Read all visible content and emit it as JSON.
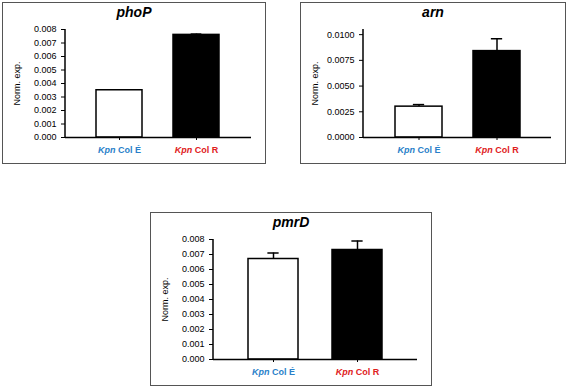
{
  "chart_data": [
    {
      "type": "bar",
      "title": "phoP",
      "y_label": "Norm. exp.",
      "categories": [
        "Kpn Col É",
        "Kpn Col R"
      ],
      "values": [
        0.0035,
        0.0076
      ],
      "errors": [
        null,
        6e-05
      ],
      "colors": [
        "#ffffff",
        "#000000"
      ],
      "ylim": [
        0,
        0.008
      ],
      "yticks": [
        {
          "value": 0,
          "label": "0.000"
        },
        {
          "value": 0.001,
          "label": "0.001"
        },
        {
          "value": 0.002,
          "label": "0.002"
        },
        {
          "value": 0.003,
          "label": "0.003"
        },
        {
          "value": 0.004,
          "label": "0.004"
        },
        {
          "value": 0.005,
          "label": "0.005"
        },
        {
          "value": 0.006,
          "label": "0.006"
        },
        {
          "value": 0.007,
          "label": "0.007"
        },
        {
          "value": 0.008,
          "label": "0.008"
        }
      ]
    },
    {
      "type": "bar",
      "title": "arn",
      "y_label": "Norm. exp.",
      "categories": [
        "Kpn Col É",
        "Kpn Col R"
      ],
      "values": [
        0.003,
        0.0084
      ],
      "errors": [
        0.0002,
        0.0012
      ],
      "colors": [
        "#ffffff",
        "#000000"
      ],
      "ylim": [
        0,
        0.0105
      ],
      "yticks": [
        {
          "value": 0,
          "label": "0.0000"
        },
        {
          "value": 0.0025,
          "label": "0.0025"
        },
        {
          "value": 0.005,
          "label": "0.0050"
        },
        {
          "value": 0.0075,
          "label": "0.0075"
        },
        {
          "value": 0.01,
          "label": "0.0100"
        }
      ]
    },
    {
      "type": "bar",
      "title": "pmrD",
      "y_label": "Norm. exp.",
      "categories": [
        "Kpn Col É",
        "Kpn Col R"
      ],
      "values": [
        0.0067,
        0.0073
      ],
      "errors": [
        0.0004,
        0.0006
      ],
      "colors": [
        "#ffffff",
        "#000000"
      ],
      "ylim": [
        0,
        0.008
      ],
      "yticks": [
        {
          "value": 0,
          "label": "0.000"
        },
        {
          "value": 0.001,
          "label": "0.001"
        },
        {
          "value": 0.002,
          "label": "0.002"
        },
        {
          "value": 0.003,
          "label": "0.003"
        },
        {
          "value": 0.004,
          "label": "0.004"
        },
        {
          "value": 0.005,
          "label": "0.005"
        },
        {
          "value": 0.006,
          "label": "0.006"
        },
        {
          "value": 0.007,
          "label": "0.007"
        },
        {
          "value": 0.008,
          "label": "0.008"
        }
      ]
    }
  ]
}
